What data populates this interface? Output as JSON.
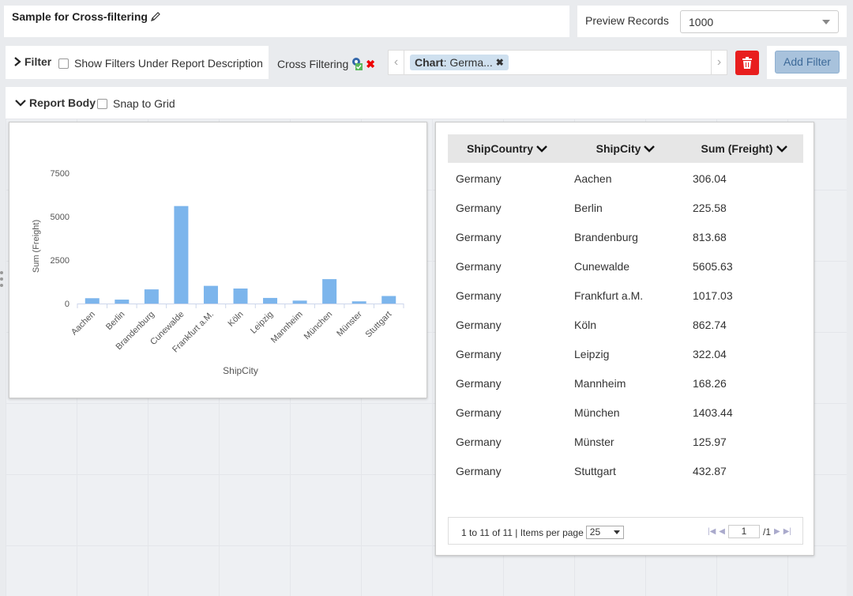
{
  "header": {
    "title": "Sample for Cross-filtering",
    "preview_label": "Preview Records",
    "preview_value": "1000"
  },
  "filter": {
    "toggle_label": "Filter",
    "show_label": "Show Filters Under Report Description",
    "cross_label": "Cross Filtering",
    "chip_key": "Chart",
    "chip_value": ": Germa...",
    "add_label": "Add Filter"
  },
  "report_body": {
    "toggle_label": "Report Body",
    "snap_label": "Snap to Grid"
  },
  "chart_data": {
    "type": "bar",
    "categories": [
      "Aachen",
      "Berlin",
      "Brandenburg",
      "Cunewalde",
      "Frankfurt a.M.",
      "Köln",
      "Leipzig",
      "Mannheim",
      "München",
      "Münster",
      "Stuttgart"
    ],
    "values": [
      306.04,
      225.58,
      813.68,
      5605.63,
      1017.03,
      862.74,
      322.04,
      168.26,
      1403.44,
      125.97,
      432.87
    ],
    "xlabel": "ShipCity",
    "ylabel": "Sum (Freight)",
    "yticks": [
      "0",
      "2500",
      "5000",
      "7500"
    ],
    "ylim": [
      0,
      7500
    ],
    "bar_color": "#7cb5ec"
  },
  "table": {
    "columns": [
      "ShipCountry",
      "ShipCity",
      "Sum (Freight)"
    ],
    "rows": [
      [
        "Germany",
        "Aachen",
        "306.04"
      ],
      [
        "Germany",
        "Berlin",
        "225.58"
      ],
      [
        "Germany",
        "Brandenburg",
        "813.68"
      ],
      [
        "Germany",
        "Cunewalde",
        "5605.63"
      ],
      [
        "Germany",
        "Frankfurt a.M.",
        "1017.03"
      ],
      [
        "Germany",
        "Köln",
        "862.74"
      ],
      [
        "Germany",
        "Leipzig",
        "322.04"
      ],
      [
        "Germany",
        "Mannheim",
        "168.26"
      ],
      [
        "Germany",
        "München",
        "1403.44"
      ],
      [
        "Germany",
        "Münster",
        "125.97"
      ],
      [
        "Germany",
        "Stuttgart",
        "432.87"
      ]
    ],
    "pager": {
      "info": "1 to 11 of 11 | Items per page",
      "per_page": "25",
      "page": "1",
      "total": "/1"
    }
  }
}
